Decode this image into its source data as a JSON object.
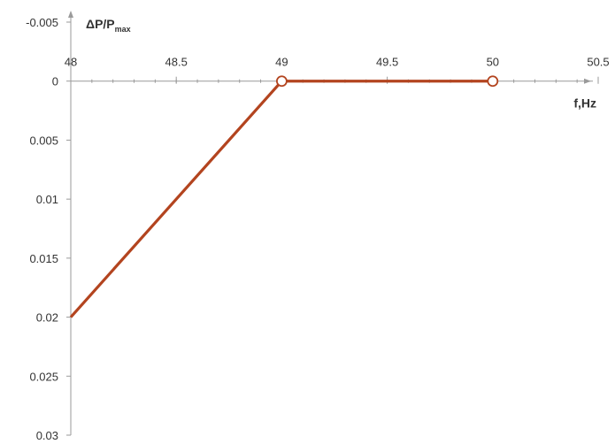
{
  "chart_data": {
    "type": "line",
    "title": "",
    "xlabel": "f,Hz",
    "ylabel": {
      "main": "ΔP/P",
      "sub": "max"
    },
    "xlim": [
      48,
      50.5
    ],
    "ylim": [
      -0.005,
      0.03
    ],
    "y_inverted": true,
    "x_ticks": [
      {
        "value": 48,
        "label": "48"
      },
      {
        "value": 48.5,
        "label": "48.5"
      },
      {
        "value": 49,
        "label": "49"
      },
      {
        "value": 49.5,
        "label": "49.5"
      },
      {
        "value": 50,
        "label": "50"
      },
      {
        "value": 50.5,
        "label": "50.5"
      }
    ],
    "y_ticks": [
      {
        "value": -0.005,
        "label": "-0.005"
      },
      {
        "value": 0,
        "label": "0"
      },
      {
        "value": 0.005,
        "label": "0.005"
      },
      {
        "value": 0.01,
        "label": "0.01"
      },
      {
        "value": 0.015,
        "label": "0.015"
      },
      {
        "value": 0.02,
        "label": "0.02"
      },
      {
        "value": 0.025,
        "label": "0.025"
      },
      {
        "value": 0.03,
        "label": "0.03"
      }
    ],
    "x_minor_step": 0.1,
    "grid": false,
    "legend": "none",
    "series": [
      {
        "color": "#b3441f",
        "points": [
          {
            "x": 48,
            "y": 0.02,
            "marker": "none"
          },
          {
            "x": 49,
            "y": 0,
            "marker": "open-circle"
          },
          {
            "x": 50,
            "y": 0,
            "marker": "open-circle"
          }
        ]
      }
    ],
    "axis_color": "#9a9a9a"
  }
}
